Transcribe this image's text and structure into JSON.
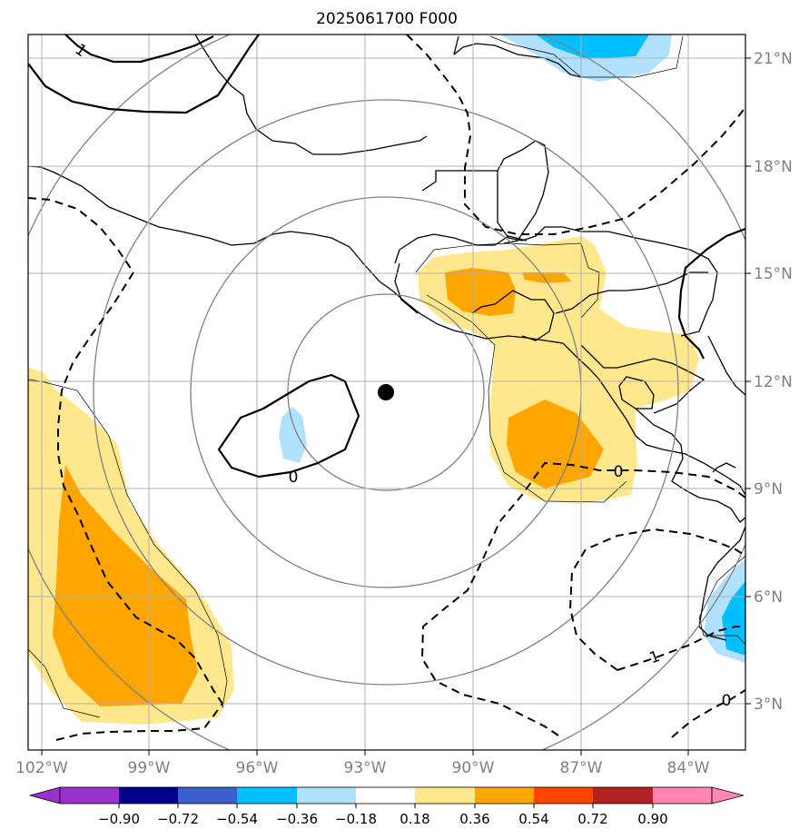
{
  "title": "2025061700 F000",
  "lon_ticks": [
    "102°W",
    "99°W",
    "96°W",
    "93°W",
    "90°W",
    "87°W",
    "84°W"
  ],
  "lat_ticks": [
    "21°N",
    "18°N",
    "15°N",
    "12°N",
    "9°N",
    "6°N",
    "3°N"
  ],
  "colorbar": {
    "ticks": [
      "−0.90",
      "−0.72",
      "−0.54",
      "−0.36",
      "−0.18",
      "0.18",
      "0.36",
      "0.54",
      "0.72",
      "0.90"
    ],
    "colors": [
      "#9932cc",
      "#00008b",
      "#3a5fcd",
      "#00bfff",
      "#b0e2ff",
      "#ffffff",
      "#ffe88c",
      "#ffa500",
      "#ff4500",
      "#b22222",
      "#ff86b2"
    ]
  },
  "contour_labels": {
    "upper_left": "1",
    "center_zero": "0",
    "right_zero": "0",
    "lower_right_neg": "-1",
    "bottom_right_zero": "0"
  },
  "colors": {
    "grid": "#b0b0b0",
    "range_rings": "#808080",
    "tick_label": "#808080",
    "center_marker": "#000000"
  },
  "icons": {
    "center_marker": "storm-center-dot"
  }
}
